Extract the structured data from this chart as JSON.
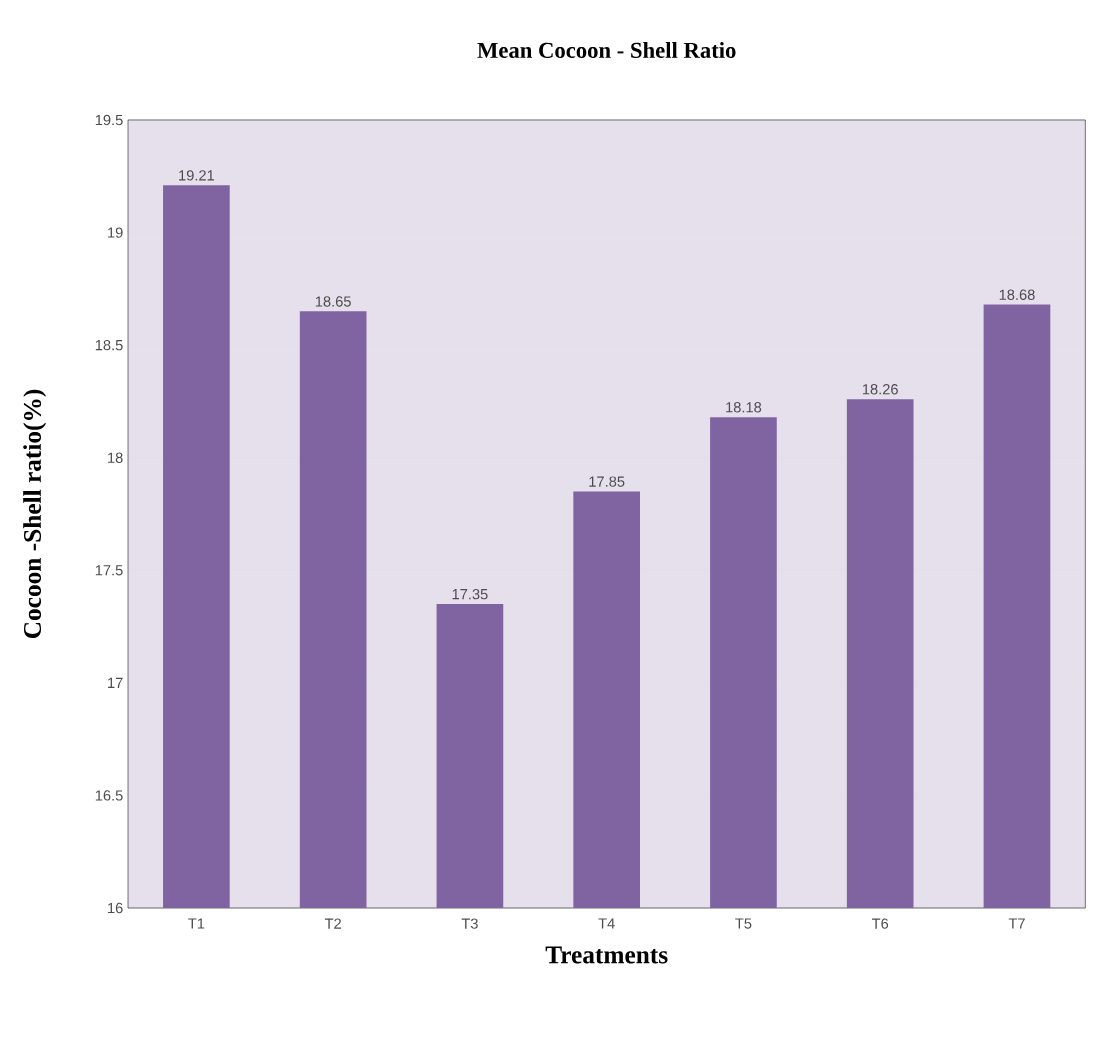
{
  "chart_data": {
    "type": "bar",
    "title": "Mean Cocoon - Shell Ratio",
    "xlabel": "Treatments",
    "ylabel": "Cocoon -Shell ratio(%)",
    "categories": [
      "T1",
      "T2",
      "T3",
      "T4",
      "T5",
      "T6",
      "T7"
    ],
    "values": [
      19.21,
      18.65,
      17.35,
      17.85,
      18.18,
      18.26,
      18.68
    ],
    "color": "#8064a2",
    "data_labels": true,
    "grid": "y",
    "ylim": [
      16,
      19.5
    ],
    "yticks": [
      16,
      16.5,
      17,
      17.5,
      18,
      18.5,
      19,
      19.5
    ]
  }
}
